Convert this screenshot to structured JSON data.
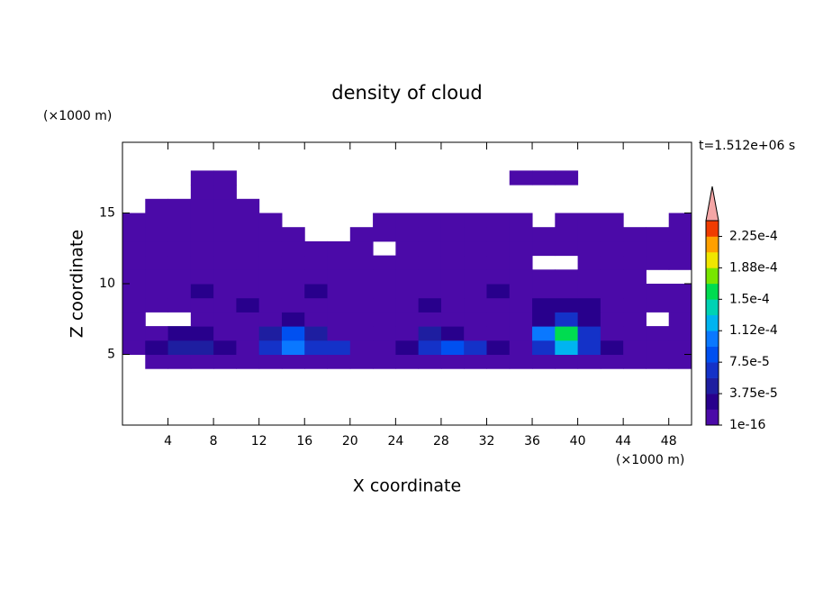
{
  "chart_data": {
    "type": "contour",
    "title": "density of cloud",
    "x_label": "X coordinate",
    "y_label": "Z coordinate",
    "x_unit": "(×1000 m)",
    "y_unit": "(×1000 m)",
    "annotation": "t=1.512e+06 s",
    "xlim": [
      0,
      50
    ],
    "xticks": [
      4,
      8,
      12,
      16,
      20,
      24,
      28,
      32,
      36,
      40,
      44,
      48
    ],
    "ylim": [
      0,
      20
    ],
    "yticks": [
      5,
      10,
      15
    ],
    "x": [
      1,
      3,
      5,
      7,
      9,
      11,
      13,
      15,
      17,
      19,
      21,
      23,
      25,
      27,
      29,
      31,
      33,
      35,
      37,
      39,
      41,
      43,
      45,
      47,
      49
    ],
    "z": [
      4.5,
      5.5,
      6.5,
      7.5,
      8.5,
      9.5,
      10.5,
      11.5,
      12.5,
      13.5,
      14.5,
      15.5,
      16.5,
      17.5,
      18.5
    ],
    "values": [
      [
        0,
        1e-16,
        1e-16,
        1e-16,
        1e-16,
        1e-16,
        1e-16,
        1e-16,
        1e-16,
        1e-16,
        1e-16,
        1e-16,
        1e-16,
        1e-16,
        1e-16,
        1e-16,
        1e-16,
        1e-16,
        1e-16,
        1e-16,
        1e-16,
        1e-16,
        1e-16,
        1e-16,
        1e-16
      ],
      [
        1e-16,
        2e-05,
        5e-05,
        5e-05,
        2e-05,
        1e-16,
        6e-05,
        0.0001,
        6e-05,
        6e-05,
        1e-16,
        1e-16,
        2e-05,
        6e-05,
        9e-05,
        6e-05,
        2e-05,
        1e-16,
        6e-05,
        0.00012,
        7e-05,
        2e-05,
        1e-16,
        1e-16,
        1e-16
      ],
      [
        1e-16,
        1e-16,
        3e-05,
        2e-05,
        1e-16,
        1e-16,
        4e-05,
        9e-05,
        4e-05,
        1e-16,
        1e-16,
        1e-16,
        1e-16,
        5e-05,
        3e-05,
        1e-16,
        1e-16,
        1e-16,
        0.0001,
        0.00016,
        6e-05,
        1e-16,
        1e-16,
        1e-16,
        1e-16
      ],
      [
        1e-16,
        0,
        0,
        1e-16,
        1e-16,
        1e-16,
        1e-16,
        2e-05,
        1e-16,
        1e-16,
        1e-16,
        1e-16,
        1e-16,
        1e-16,
        1e-16,
        1e-16,
        1e-16,
        1e-16,
        3e-05,
        6e-05,
        3e-05,
        1e-16,
        1e-16,
        0,
        1e-16
      ],
      [
        1e-16,
        1e-16,
        1e-16,
        1e-16,
        1e-16,
        2e-05,
        1e-16,
        1e-16,
        1e-16,
        1e-16,
        1e-16,
        1e-16,
        1e-16,
        2e-05,
        1e-16,
        1e-16,
        1e-16,
        1e-16,
        2e-05,
        2e-05,
        2e-05,
        1e-16,
        1e-16,
        1e-16,
        1e-16
      ],
      [
        1e-16,
        1e-16,
        1e-16,
        2e-05,
        1e-16,
        1e-16,
        1e-16,
        1e-16,
        2e-05,
        1e-16,
        1e-16,
        1e-16,
        1e-16,
        1e-16,
        1e-16,
        1e-16,
        2e-05,
        1e-16,
        1e-16,
        1e-16,
        1e-16,
        1e-16,
        1e-16,
        1e-16,
        1e-16
      ],
      [
        1e-16,
        1e-16,
        1e-16,
        1e-16,
        1e-16,
        1e-16,
        1e-16,
        1e-16,
        1e-16,
        1e-16,
        1e-16,
        1e-16,
        1e-16,
        1e-16,
        1e-16,
        1e-16,
        1e-16,
        1e-16,
        1e-16,
        1e-16,
        1e-16,
        1e-16,
        1e-16,
        0,
        0
      ],
      [
        1e-16,
        1e-16,
        1e-16,
        1e-16,
        1e-16,
        1e-16,
        1e-16,
        1e-16,
        1e-16,
        1e-16,
        1e-16,
        1e-16,
        1e-16,
        1e-16,
        1e-16,
        1e-16,
        1e-16,
        1e-16,
        0,
        0,
        1e-16,
        1e-16,
        1e-16,
        1e-16,
        1e-16
      ],
      [
        1e-16,
        1e-16,
        1e-16,
        1e-16,
        1e-16,
        1e-16,
        1e-16,
        1e-16,
        1e-16,
        1e-16,
        1e-16,
        0,
        1e-16,
        1e-16,
        1e-16,
        1e-16,
        1e-16,
        1e-16,
        1e-16,
        1e-16,
        1e-16,
        1e-16,
        1e-16,
        1e-16,
        1e-16
      ],
      [
        1e-16,
        1e-16,
        1e-16,
        1e-16,
        1e-16,
        1e-16,
        1e-16,
        1e-16,
        0,
        0,
        1e-16,
        1e-16,
        1e-16,
        1e-16,
        1e-16,
        1e-16,
        1e-16,
        1e-16,
        1e-16,
        1e-16,
        1e-16,
        1e-16,
        1e-16,
        1e-16,
        1e-16
      ],
      [
        1e-16,
        1e-16,
        1e-16,
        1e-16,
        1e-16,
        1e-16,
        1e-16,
        0,
        0,
        0,
        0,
        1e-16,
        1e-16,
        1e-16,
        1e-16,
        1e-16,
        1e-16,
        1e-16,
        0,
        1e-16,
        1e-16,
        1e-16,
        0,
        0,
        1e-16
      ],
      [
        0,
        1e-16,
        1e-16,
        1e-16,
        1e-16,
        1e-16,
        0,
        0,
        0,
        0,
        0,
        0,
        0,
        0,
        0,
        0,
        0,
        0,
        0,
        0,
        0,
        0,
        0,
        0,
        0
      ],
      [
        0,
        0,
        0,
        1e-16,
        1e-16,
        0,
        0,
        0,
        0,
        0,
        0,
        0,
        0,
        0,
        0,
        0,
        0,
        0,
        0,
        0,
        0,
        0,
        0,
        0,
        0
      ],
      [
        0,
        0,
        0,
        1e-16,
        1e-16,
        0,
        0,
        0,
        0,
        0,
        0,
        0,
        0,
        0,
        0,
        0,
        0,
        1e-16,
        1e-16,
        1e-16,
        0,
        0,
        0,
        0,
        0
      ],
      [
        0,
        0,
        0,
        0,
        0,
        0,
        0,
        0,
        0,
        0,
        0,
        0,
        0,
        0,
        0,
        0,
        0,
        0,
        0,
        0,
        0,
        0,
        0,
        0,
        0
      ]
    ],
    "colorbar": {
      "levels": [
        1e-16,
        1.875e-05,
        3.75e-05,
        5.625e-05,
        7.5e-05,
        9.375e-05,
        0.0001125,
        0.00013125,
        0.00015,
        0.00016875,
        0.0001875,
        0.00020625,
        0.000225,
        0.00024375
      ],
      "colors": [
        "#4b0aa8",
        "#28008c",
        "#1e1ea0",
        "#1432c8",
        "#0050f0",
        "#0a78ff",
        "#00b4f0",
        "#00d2b4",
        "#00dc50",
        "#78e600",
        "#f0e600",
        "#ffa000",
        "#f03c00"
      ],
      "extend_color": "#f4a6a6",
      "ticks": [
        {
          "value": 1e-16,
          "label": "1e-16"
        },
        {
          "value": 3.75e-05,
          "label": "3.75e-5"
        },
        {
          "value": 7.5e-05,
          "label": "7.5e-5"
        },
        {
          "value": 0.0001125,
          "label": "1.12e-4"
        },
        {
          "value": 0.00015,
          "label": "1.5e-4"
        },
        {
          "value": 0.0001875,
          "label": "1.88e-4"
        },
        {
          "value": 0.000225,
          "label": "2.25e-4"
        }
      ]
    }
  }
}
